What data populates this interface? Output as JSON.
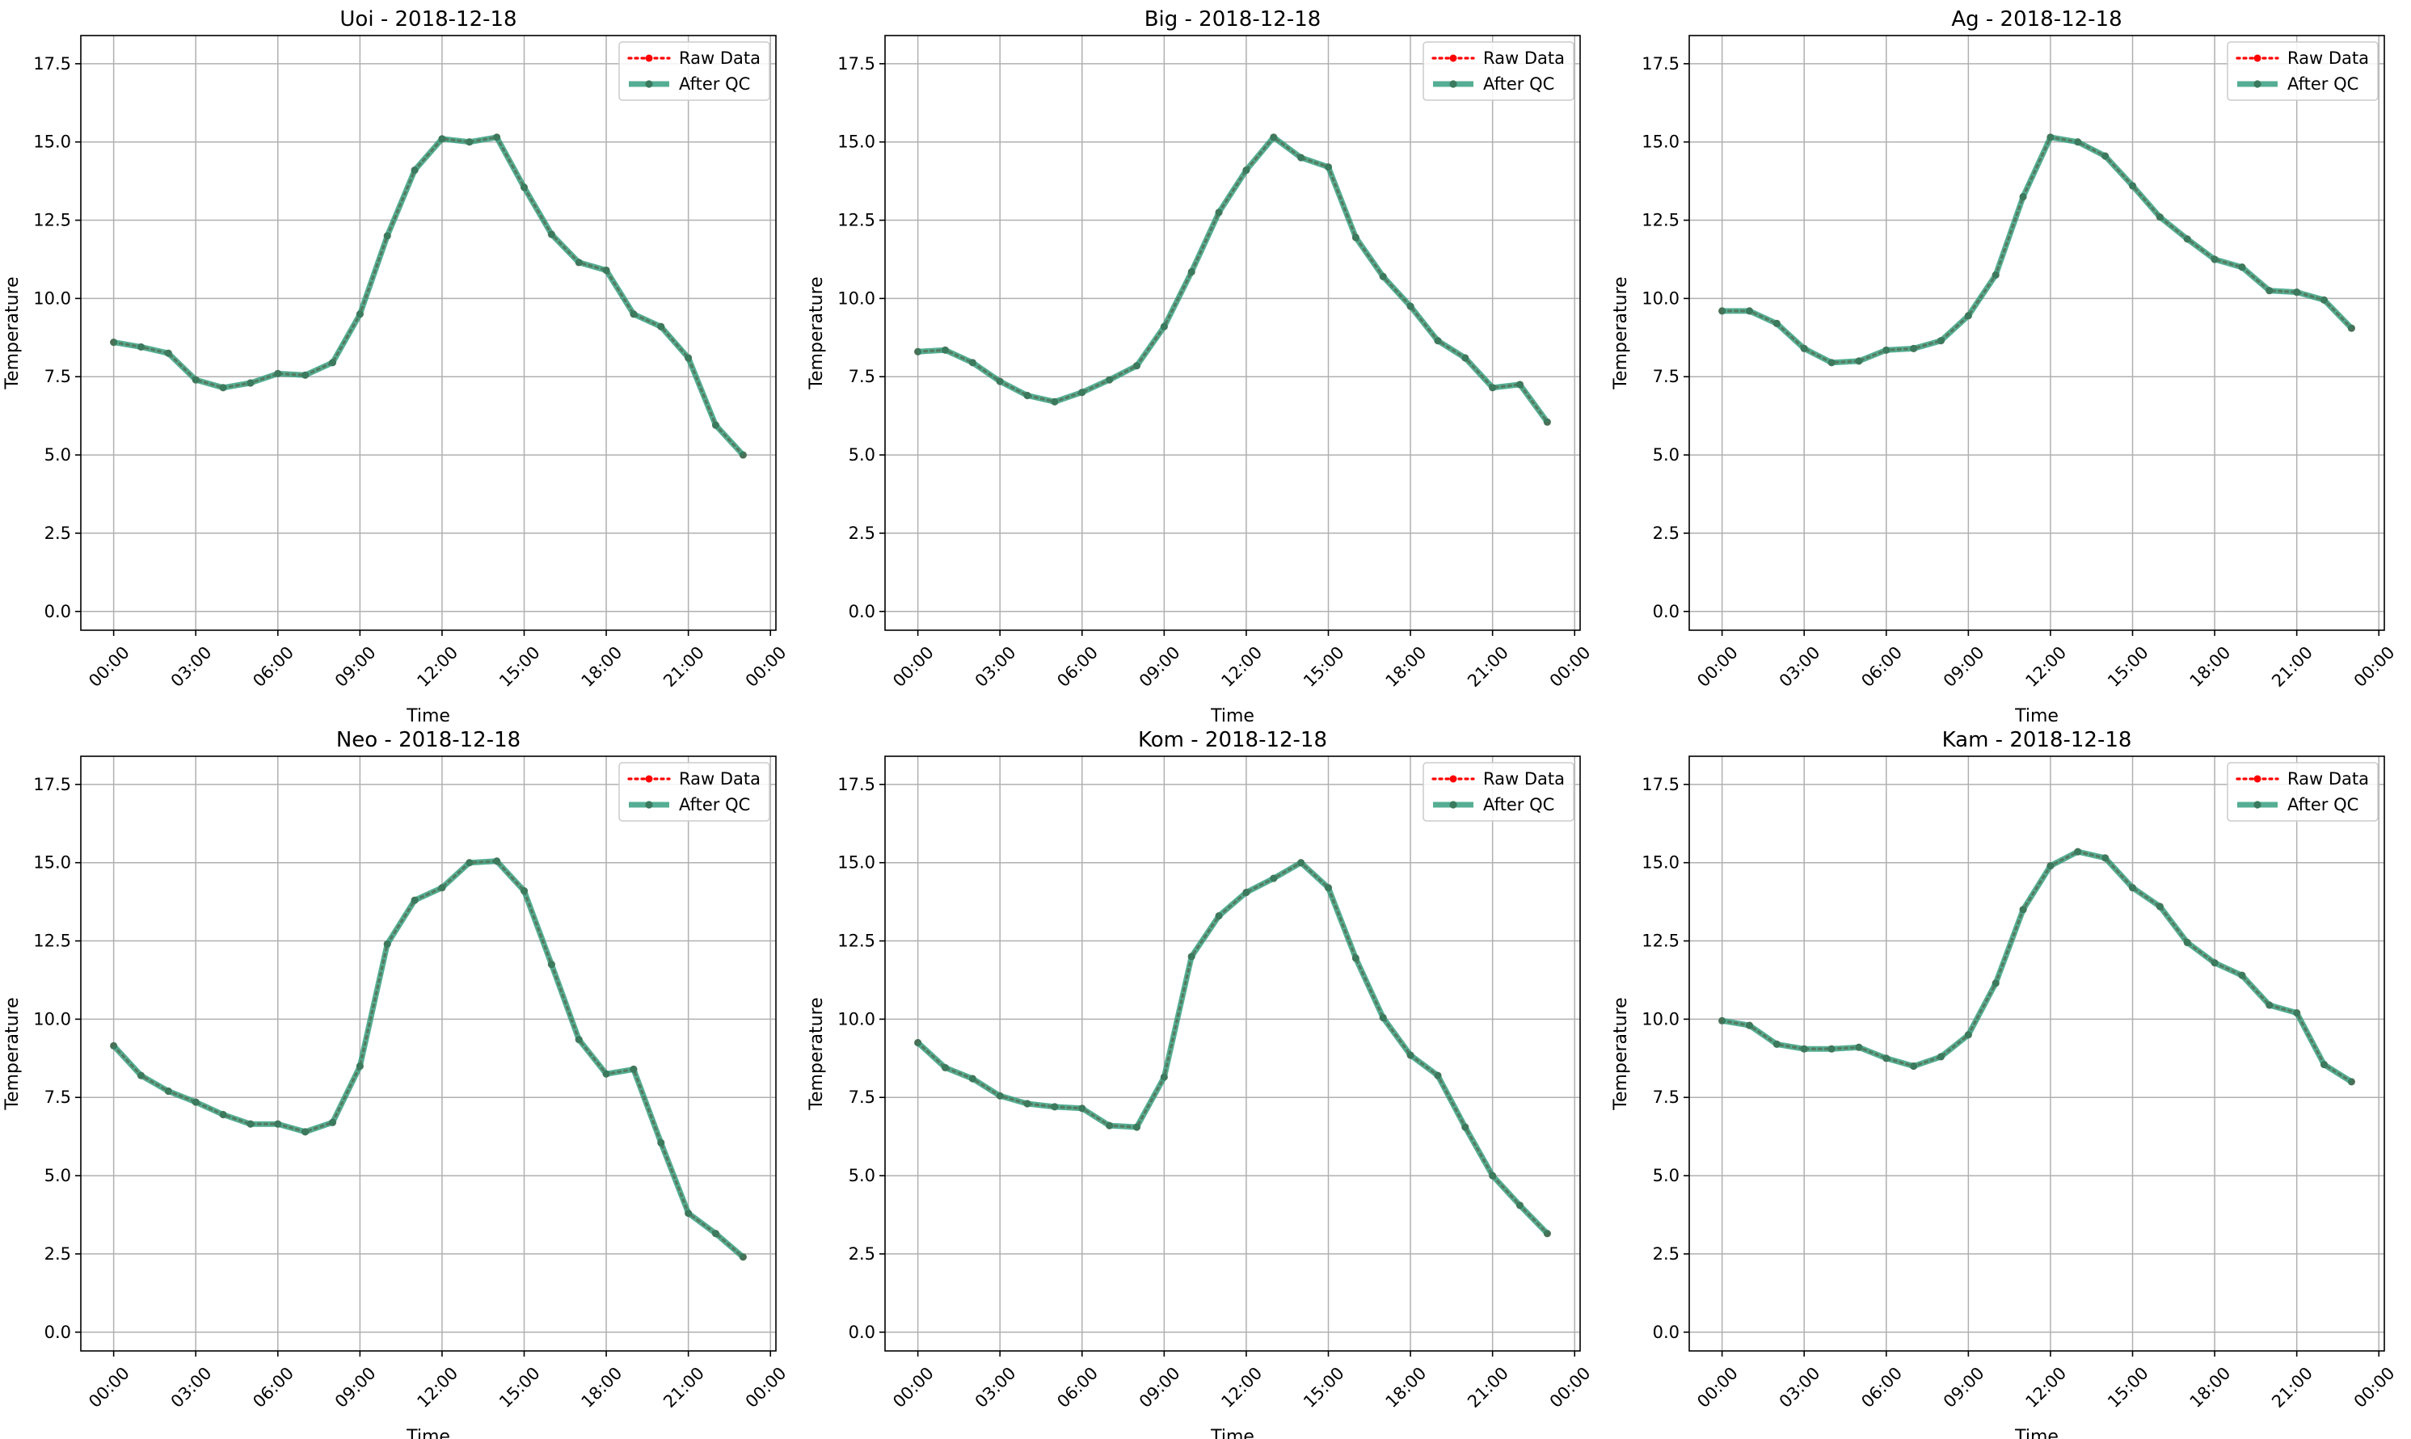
{
  "colors": {
    "raw": "#ff0000",
    "qc": "#2a9a78",
    "qc_marker": "#3a7a5e",
    "grid": "#b0b0b0"
  },
  "chart_data": [
    {
      "type": "line",
      "title": "Uoi - 2018-12-18",
      "xlabel": "Time",
      "ylabel": "Temperature",
      "ylim": [
        -0.6,
        18.4
      ],
      "yticks": [
        0.0,
        2.5,
        5.0,
        7.5,
        10.0,
        12.5,
        15.0,
        17.5
      ],
      "ytick_labels": [
        "0.0",
        "2.5",
        "5.0",
        "7.5",
        "10.0",
        "12.5",
        "15.0",
        "17.5"
      ],
      "xlim": [
        -1.2,
        24.2
      ],
      "xticks": [
        0,
        3,
        6,
        9,
        12,
        15,
        18,
        21,
        24
      ],
      "xtick_labels": [
        "00:00",
        "03:00",
        "06:00",
        "09:00",
        "12:00",
        "15:00",
        "18:00",
        "21:00",
        "00:00"
      ],
      "grid": true,
      "legend_position": "top-right",
      "x": [
        0,
        1,
        2,
        3,
        4,
        5,
        6,
        7,
        8,
        9,
        10,
        11,
        12,
        13,
        14,
        15,
        16,
        17,
        18,
        19,
        20,
        21,
        22,
        23
      ],
      "series": [
        {
          "name": "Raw Data",
          "values": [
            8.6,
            8.45,
            8.25,
            7.4,
            7.15,
            7.3,
            7.6,
            7.55,
            7.95,
            9.5,
            12.0,
            14.1,
            15.1,
            15.0,
            15.15,
            13.55,
            12.05,
            11.15,
            10.9,
            9.5,
            9.1,
            8.1,
            5.95,
            5.0
          ]
        },
        {
          "name": "After QC",
          "values": [
            8.6,
            8.45,
            8.25,
            7.4,
            7.15,
            7.3,
            7.6,
            7.55,
            7.95,
            9.5,
            12.0,
            14.1,
            15.1,
            15.0,
            15.15,
            13.55,
            12.05,
            11.15,
            10.9,
            9.5,
            9.1,
            8.1,
            5.95,
            5.0
          ]
        }
      ]
    },
    {
      "type": "line",
      "title": "Big - 2018-12-18",
      "xlabel": "Time",
      "ylabel": "Temperature",
      "ylim": [
        -0.6,
        18.4
      ],
      "yticks": [
        0.0,
        2.5,
        5.0,
        7.5,
        10.0,
        12.5,
        15.0,
        17.5
      ],
      "ytick_labels": [
        "0.0",
        "2.5",
        "5.0",
        "7.5",
        "10.0",
        "12.5",
        "15.0",
        "17.5"
      ],
      "xlim": [
        -1.2,
        24.2
      ],
      "xticks": [
        0,
        3,
        6,
        9,
        12,
        15,
        18,
        21,
        24
      ],
      "xtick_labels": [
        "00:00",
        "03:00",
        "06:00",
        "09:00",
        "12:00",
        "15:00",
        "18:00",
        "21:00",
        "00:00"
      ],
      "grid": true,
      "legend_position": "top-right",
      "x": [
        0,
        1,
        2,
        3,
        4,
        5,
        6,
        7,
        8,
        9,
        10,
        11,
        12,
        13,
        14,
        15,
        16,
        17,
        18,
        19,
        20,
        21,
        22,
        23
      ],
      "series": [
        {
          "name": "Raw Data",
          "values": [
            8.3,
            8.35,
            7.95,
            7.35,
            6.9,
            6.7,
            7.0,
            7.4,
            7.85,
            9.1,
            10.85,
            12.75,
            14.1,
            15.15,
            14.5,
            14.2,
            11.95,
            10.7,
            9.75,
            8.65,
            8.1,
            7.15,
            7.25,
            6.05
          ]
        },
        {
          "name": "After QC",
          "values": [
            8.3,
            8.35,
            7.95,
            7.35,
            6.9,
            6.7,
            7.0,
            7.4,
            7.85,
            9.1,
            10.85,
            12.75,
            14.1,
            15.15,
            14.5,
            14.2,
            11.95,
            10.7,
            9.75,
            8.65,
            8.1,
            7.15,
            7.25,
            6.05
          ]
        }
      ]
    },
    {
      "type": "line",
      "title": "Ag - 2018-12-18",
      "xlabel": "Time",
      "ylabel": "Temperature",
      "ylim": [
        -0.6,
        18.4
      ],
      "yticks": [
        0.0,
        2.5,
        5.0,
        7.5,
        10.0,
        12.5,
        15.0,
        17.5
      ],
      "ytick_labels": [
        "0.0",
        "2.5",
        "5.0",
        "7.5",
        "10.0",
        "12.5",
        "15.0",
        "17.5"
      ],
      "xlim": [
        -1.2,
        24.2
      ],
      "xticks": [
        0,
        3,
        6,
        9,
        12,
        15,
        18,
        21,
        24
      ],
      "xtick_labels": [
        "00:00",
        "03:00",
        "06:00",
        "09:00",
        "12:00",
        "15:00",
        "18:00",
        "21:00",
        "00:00"
      ],
      "grid": true,
      "legend_position": "top-right",
      "x": [
        0,
        1,
        2,
        3,
        4,
        5,
        6,
        7,
        8,
        9,
        10,
        11,
        12,
        13,
        14,
        15,
        16,
        17,
        18,
        19,
        20,
        21,
        22,
        23
      ],
      "series": [
        {
          "name": "Raw Data",
          "values": [
            9.6,
            9.6,
            9.2,
            8.4,
            7.95,
            8.0,
            8.35,
            8.4,
            8.65,
            9.45,
            10.75,
            13.25,
            15.15,
            15.0,
            14.55,
            13.6,
            12.6,
            11.9,
            11.25,
            11.0,
            10.25,
            10.2,
            9.95,
            9.05
          ]
        },
        {
          "name": "After QC",
          "values": [
            9.6,
            9.6,
            9.2,
            8.4,
            7.95,
            8.0,
            8.35,
            8.4,
            8.65,
            9.45,
            10.75,
            13.25,
            15.15,
            15.0,
            14.55,
            13.6,
            12.6,
            11.9,
            11.25,
            11.0,
            10.25,
            10.2,
            9.95,
            9.05
          ]
        }
      ]
    },
    {
      "type": "line",
      "title": "Neo - 2018-12-18",
      "xlabel": "Time",
      "ylabel": "Temperature",
      "ylim": [
        -0.6,
        18.4
      ],
      "yticks": [
        0.0,
        2.5,
        5.0,
        7.5,
        10.0,
        12.5,
        15.0,
        17.5
      ],
      "ytick_labels": [
        "0.0",
        "2.5",
        "5.0",
        "7.5",
        "10.0",
        "12.5",
        "15.0",
        "17.5"
      ],
      "xlim": [
        -1.2,
        24.2
      ],
      "xticks": [
        0,
        3,
        6,
        9,
        12,
        15,
        18,
        21,
        24
      ],
      "xtick_labels": [
        "00:00",
        "03:00",
        "06:00",
        "09:00",
        "12:00",
        "15:00",
        "18:00",
        "21:00",
        "00:00"
      ],
      "grid": true,
      "legend_position": "top-right",
      "x": [
        0,
        1,
        2,
        3,
        4,
        5,
        6,
        7,
        8,
        9,
        10,
        11,
        12,
        13,
        14,
        15,
        16,
        17,
        18,
        19,
        20,
        21,
        22,
        23
      ],
      "series": [
        {
          "name": "Raw Data",
          "values": [
            9.15,
            8.2,
            7.7,
            7.35,
            6.95,
            6.65,
            6.65,
            6.4,
            6.7,
            8.5,
            12.4,
            13.8,
            14.2,
            15.0,
            15.05,
            14.1,
            11.75,
            9.35,
            8.25,
            8.4,
            6.05,
            3.8,
            3.15,
            2.4
          ]
        },
        {
          "name": "After QC",
          "values": [
            9.15,
            8.2,
            7.7,
            7.35,
            6.95,
            6.65,
            6.65,
            6.4,
            6.7,
            8.5,
            12.4,
            13.8,
            14.2,
            15.0,
            15.05,
            14.1,
            11.75,
            9.35,
            8.25,
            8.4,
            6.05,
            3.8,
            3.15,
            2.4
          ]
        }
      ]
    },
    {
      "type": "line",
      "title": "Kom - 2018-12-18",
      "xlabel": "Time",
      "ylabel": "Temperature",
      "ylim": [
        -0.6,
        18.4
      ],
      "yticks": [
        0.0,
        2.5,
        5.0,
        7.5,
        10.0,
        12.5,
        15.0,
        17.5
      ],
      "ytick_labels": [
        "0.0",
        "2.5",
        "5.0",
        "7.5",
        "10.0",
        "12.5",
        "15.0",
        "17.5"
      ],
      "xlim": [
        -1.2,
        24.2
      ],
      "xticks": [
        0,
        3,
        6,
        9,
        12,
        15,
        18,
        21,
        24
      ],
      "xtick_labels": [
        "00:00",
        "03:00",
        "06:00",
        "09:00",
        "12:00",
        "15:00",
        "18:00",
        "21:00",
        "00:00"
      ],
      "grid": true,
      "legend_position": "top-right",
      "x": [
        0,
        1,
        2,
        3,
        4,
        5,
        6,
        7,
        8,
        9,
        10,
        11,
        12,
        13,
        14,
        15,
        16,
        17,
        18,
        19,
        20,
        21,
        22,
        23
      ],
      "series": [
        {
          "name": "Raw Data",
          "values": [
            9.25,
            8.45,
            8.1,
            7.55,
            7.3,
            7.2,
            7.15,
            6.6,
            6.55,
            8.15,
            12.0,
            13.3,
            14.05,
            14.5,
            15.0,
            14.2,
            11.95,
            10.05,
            8.85,
            8.2,
            6.55,
            5.0,
            4.05,
            3.15
          ]
        },
        {
          "name": "After QC",
          "values": [
            9.25,
            8.45,
            8.1,
            7.55,
            7.3,
            7.2,
            7.15,
            6.6,
            6.55,
            8.15,
            12.0,
            13.3,
            14.05,
            14.5,
            15.0,
            14.2,
            11.95,
            10.05,
            8.85,
            8.2,
            6.55,
            5.0,
            4.05,
            3.15
          ]
        }
      ]
    },
    {
      "type": "line",
      "title": "Kam - 2018-12-18",
      "xlabel": "Time",
      "ylabel": "Temperature",
      "ylim": [
        -0.6,
        18.4
      ],
      "yticks": [
        0.0,
        2.5,
        5.0,
        7.5,
        10.0,
        12.5,
        15.0,
        17.5
      ],
      "ytick_labels": [
        "0.0",
        "2.5",
        "5.0",
        "7.5",
        "10.0",
        "12.5",
        "15.0",
        "17.5"
      ],
      "xlim": [
        -1.2,
        24.2
      ],
      "xticks": [
        0,
        3,
        6,
        9,
        12,
        15,
        18,
        21,
        24
      ],
      "xtick_labels": [
        "00:00",
        "03:00",
        "06:00",
        "09:00",
        "12:00",
        "15:00",
        "18:00",
        "21:00",
        "00:00"
      ],
      "grid": true,
      "legend_position": "top-right",
      "x": [
        0,
        1,
        2,
        3,
        4,
        5,
        6,
        7,
        8,
        9,
        10,
        11,
        12,
        13,
        14,
        15,
        16,
        17,
        18,
        19,
        20,
        21,
        22,
        23
      ],
      "series": [
        {
          "name": "Raw Data",
          "values": [
            9.95,
            9.8,
            9.2,
            9.05,
            9.05,
            9.1,
            8.75,
            8.5,
            8.8,
            9.5,
            11.15,
            13.5,
            14.9,
            15.35,
            15.15,
            14.2,
            13.6,
            12.45,
            11.8,
            11.4,
            10.45,
            10.2,
            8.55,
            8.0
          ]
        },
        {
          "name": "After QC",
          "values": [
            9.95,
            9.8,
            9.2,
            9.05,
            9.05,
            9.1,
            8.75,
            8.5,
            8.8,
            9.5,
            11.15,
            13.5,
            14.9,
            15.35,
            15.15,
            14.2,
            13.6,
            12.45,
            11.8,
            11.4,
            10.45,
            10.2,
            8.55,
            8.0
          ]
        }
      ]
    }
  ]
}
